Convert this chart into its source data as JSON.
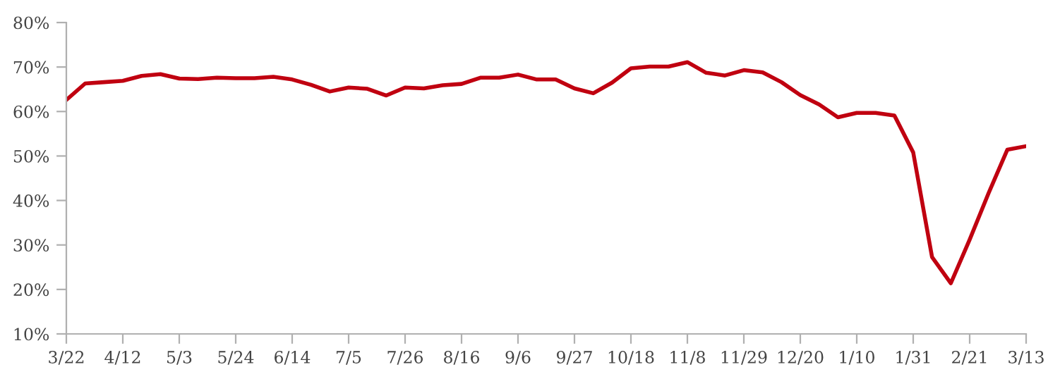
{
  "chart_data": {
    "type": "line",
    "categories": [
      "3/22",
      null,
      null,
      "4/12",
      null,
      null,
      "5/3",
      null,
      null,
      "5/24",
      null,
      null,
      "6/14",
      null,
      null,
      "7/5",
      null,
      null,
      "7/26",
      null,
      null,
      "8/16",
      null,
      null,
      "9/6",
      null,
      null,
      "9/27",
      null,
      null,
      "10/18",
      null,
      null,
      "11/8",
      null,
      null,
      "11/29",
      null,
      null,
      "12/20",
      null,
      null,
      "1/10",
      null,
      null,
      "1/31",
      null,
      null,
      "2/21",
      null,
      null,
      "3/13"
    ],
    "series": [
      {
        "color": "#c00010",
        "values": [
          62.6,
          66.3,
          66.6,
          66.9,
          68.0,
          68.4,
          67.4,
          67.3,
          67.6,
          67.5,
          67.5,
          67.8,
          67.2,
          66.0,
          64.5,
          65.4,
          65.1,
          63.6,
          65.4,
          65.2,
          65.9,
          66.2,
          67.6,
          67.6,
          68.3,
          67.2,
          67.2,
          65.2,
          64.1,
          66.5,
          69.7,
          70.1,
          70.1,
          71.1,
          68.7,
          68.1,
          69.3,
          68.8,
          66.6,
          63.7,
          61.6,
          58.7,
          59.7,
          59.7,
          59.1,
          50.8,
          27.3,
          21.4,
          31.2,
          41.6,
          51.4,
          52.2
        ]
      }
    ],
    "ylim": [
      10,
      80
    ],
    "yticks": [
      {
        "value": 10,
        "label": "10%"
      },
      {
        "value": 20,
        "label": "20%"
      },
      {
        "value": 30,
        "label": "30%"
      },
      {
        "value": 40,
        "label": "40%"
      },
      {
        "value": 50,
        "label": "50%"
      },
      {
        "value": 60,
        "label": "60%"
      },
      {
        "value": 70,
        "label": "70%"
      },
      {
        "value": 80,
        "label": "80%"
      }
    ],
    "grid": false,
    "marker": "none",
    "line_style": "solid"
  }
}
